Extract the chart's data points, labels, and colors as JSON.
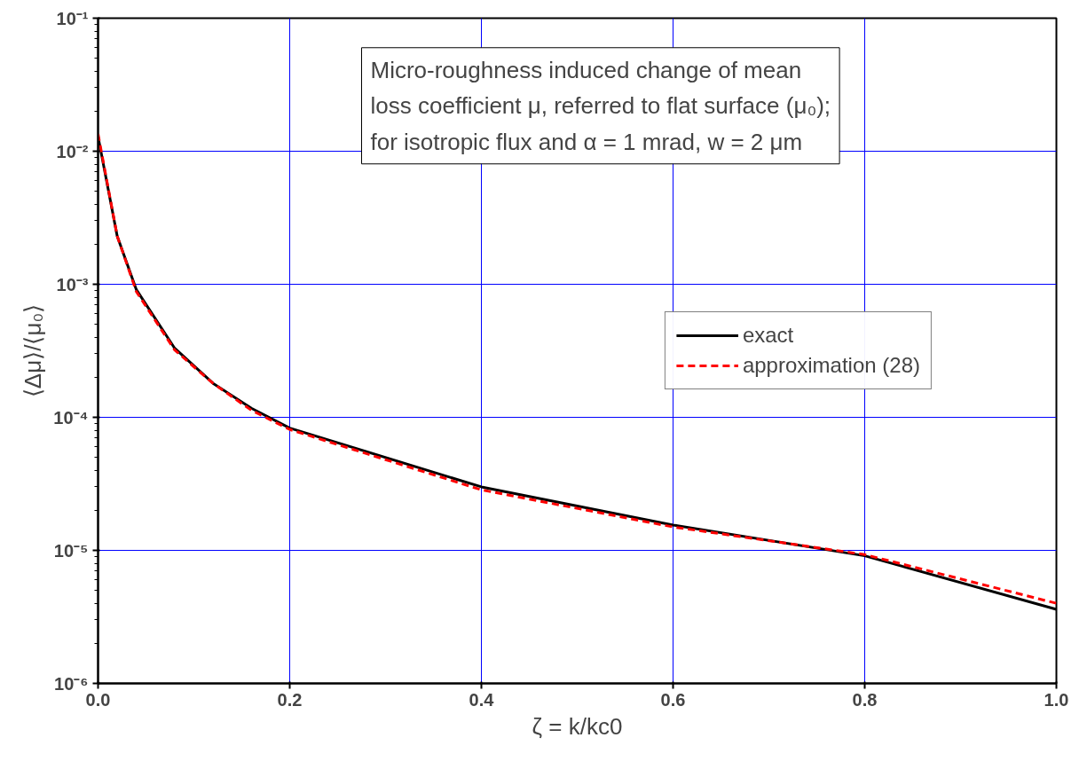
{
  "chart_data": {
    "type": "line",
    "xlabel": "ζ = k/kc0",
    "ylabel": "⟨Δμ⟩/⟨μ₀⟩",
    "annotations": [
      "Micro-roughness induced change of mean\nloss coefficient μ, referred to flat surface (μ₀);\nfor isotropic flux and α = 1 mrad, w = 2 μm"
    ],
    "series": [
      {
        "name": "exact",
        "color": "#000000",
        "line_style": "solid",
        "x": [
          0,
          0.02,
          0.04,
          0.08,
          0.12,
          0.16,
          0.2,
          0.4,
          0.6,
          0.8,
          1.0
        ],
        "values": [
          0.0129,
          0.0023,
          0.00091,
          0.00033,
          0.00018,
          0.000117,
          8.3e-05,
          3e-05,
          1.55e-05,
          9.1e-06,
          3.6e-06
        ]
      },
      {
        "name": "approximation (28)",
        "color": "#ff0000",
        "line_style": "dashed",
        "x": [
          0,
          0.02,
          0.04,
          0.08,
          0.12,
          0.16,
          0.2,
          0.4,
          0.6,
          0.8,
          1.0
        ],
        "values": [
          0.0135,
          0.0023,
          0.00088,
          0.00032,
          0.00018,
          0.000113,
          8.1e-05,
          2.85e-05,
          1.5e-05,
          9.3e-06,
          4e-06
        ]
      }
    ],
    "log": "y",
    "xlim": [
      0,
      1.0
    ],
    "ylim": [
      1e-06,
      0.1
    ],
    "xticks": [
      {
        "value": 0,
        "label": "0.0"
      },
      0.2,
      0.4,
      0.6,
      0.8,
      {
        "value": 1.0,
        "label": "1.0"
      }
    ],
    "yticks": [
      {
        "value": 1e-06,
        "label": "10⁻⁶"
      },
      {
        "value": 1e-05,
        "label": "10⁻⁵"
      },
      {
        "value": 0.0001,
        "label": "10⁻⁴"
      },
      {
        "value": 0.001,
        "label": "10⁻³"
      },
      {
        "value": 0.01,
        "label": "10⁻²"
      },
      {
        "value": 0.1,
        "label": "10⁻¹"
      }
    ],
    "grid": true,
    "legend": "right"
  }
}
